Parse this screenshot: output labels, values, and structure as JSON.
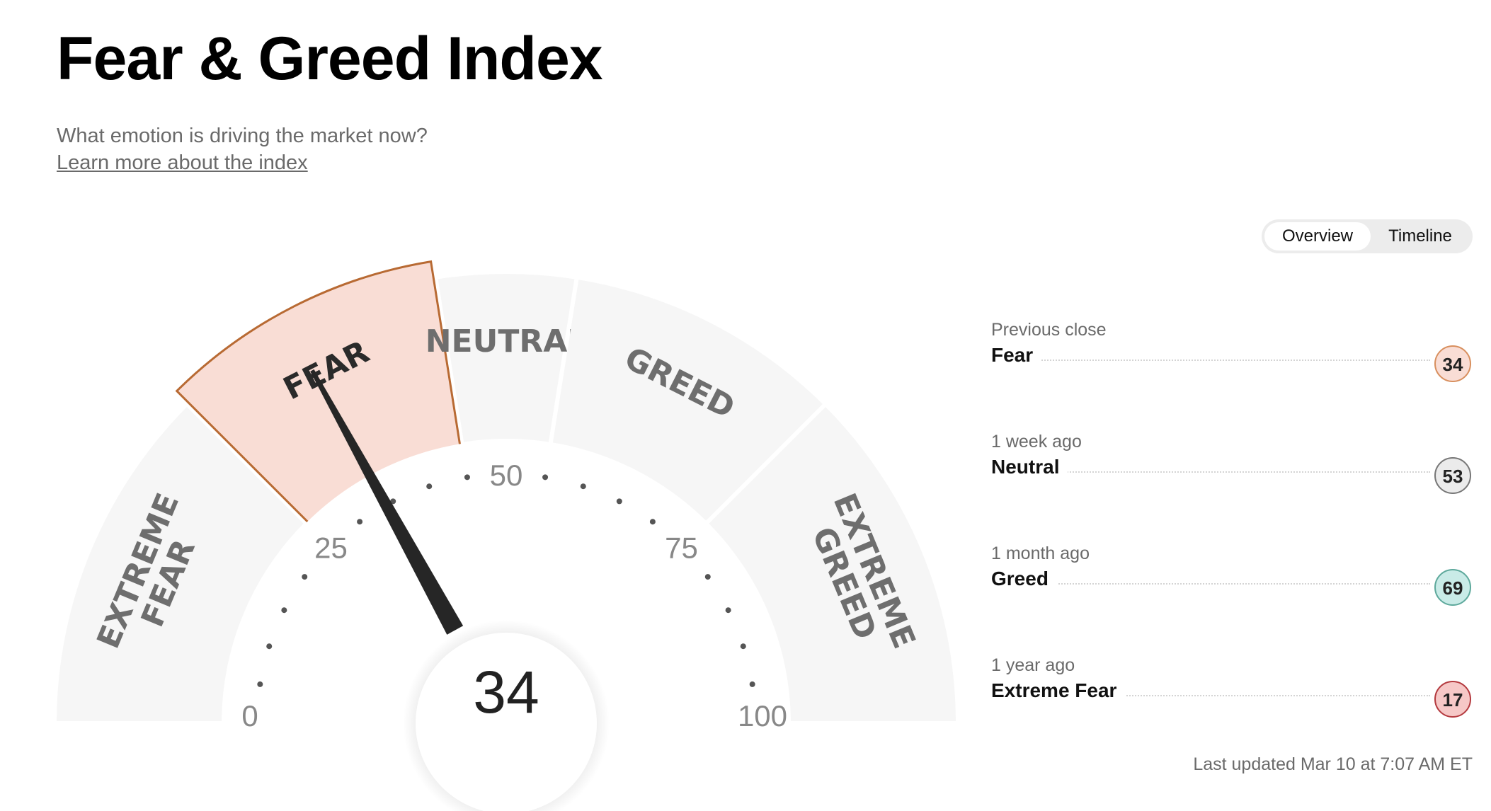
{
  "header": {
    "title": "Fear & Greed Index",
    "subtitle": "What emotion is driving the market now?",
    "learn_more": "Learn more about the index"
  },
  "view_toggle": {
    "options": [
      "Overview",
      "Timeline"
    ],
    "selected": "Overview"
  },
  "gauge": {
    "value": 34,
    "value_label": "34",
    "min": 0,
    "max": 100,
    "tick_labels": [
      "0",
      "25",
      "50",
      "75",
      "100"
    ],
    "active_segment": "fear",
    "segments": [
      {
        "id": "extreme-fear",
        "label_lines": [
          "EXTREME",
          "FEAR"
        ],
        "from": 0,
        "to": 25
      },
      {
        "id": "fear",
        "label_lines": [
          "FEAR"
        ],
        "from": 25,
        "to": 45
      },
      {
        "id": "neutral",
        "label_lines": [
          "NEUTRAL"
        ],
        "from": 45,
        "to": 55
      },
      {
        "id": "greed",
        "label_lines": [
          "GREED"
        ],
        "from": 55,
        "to": 75
      },
      {
        "id": "extreme-greed",
        "label_lines": [
          "EXTREME",
          "GREED"
        ],
        "from": 75,
        "to": 100
      }
    ],
    "colors": {
      "segment": "#f6f6f6",
      "active_fill": "#f9ddd5",
      "active_stroke": "#b86a33",
      "label": "#6e6e6e",
      "active_label": "#2a2a2a",
      "needle": "#262626"
    }
  },
  "history": [
    {
      "period": "Previous close",
      "rating": "Fear",
      "value": "34",
      "color": "#f9ddd5",
      "border": "#d88f5e"
    },
    {
      "period": "1 week ago",
      "rating": "Neutral",
      "value": "53",
      "color": "#ebebeb",
      "border": "#777777"
    },
    {
      "period": "1 month ago",
      "rating": "Greed",
      "value": "69",
      "color": "#c9ebe7",
      "border": "#5ea99c"
    },
    {
      "period": "1 year ago",
      "rating": "Extreme Fear",
      "value": "17",
      "color": "#f6c8c7",
      "border": "#b43a3f"
    }
  ],
  "last_updated": "Last updated Mar 10 at 7:07 AM ET"
}
